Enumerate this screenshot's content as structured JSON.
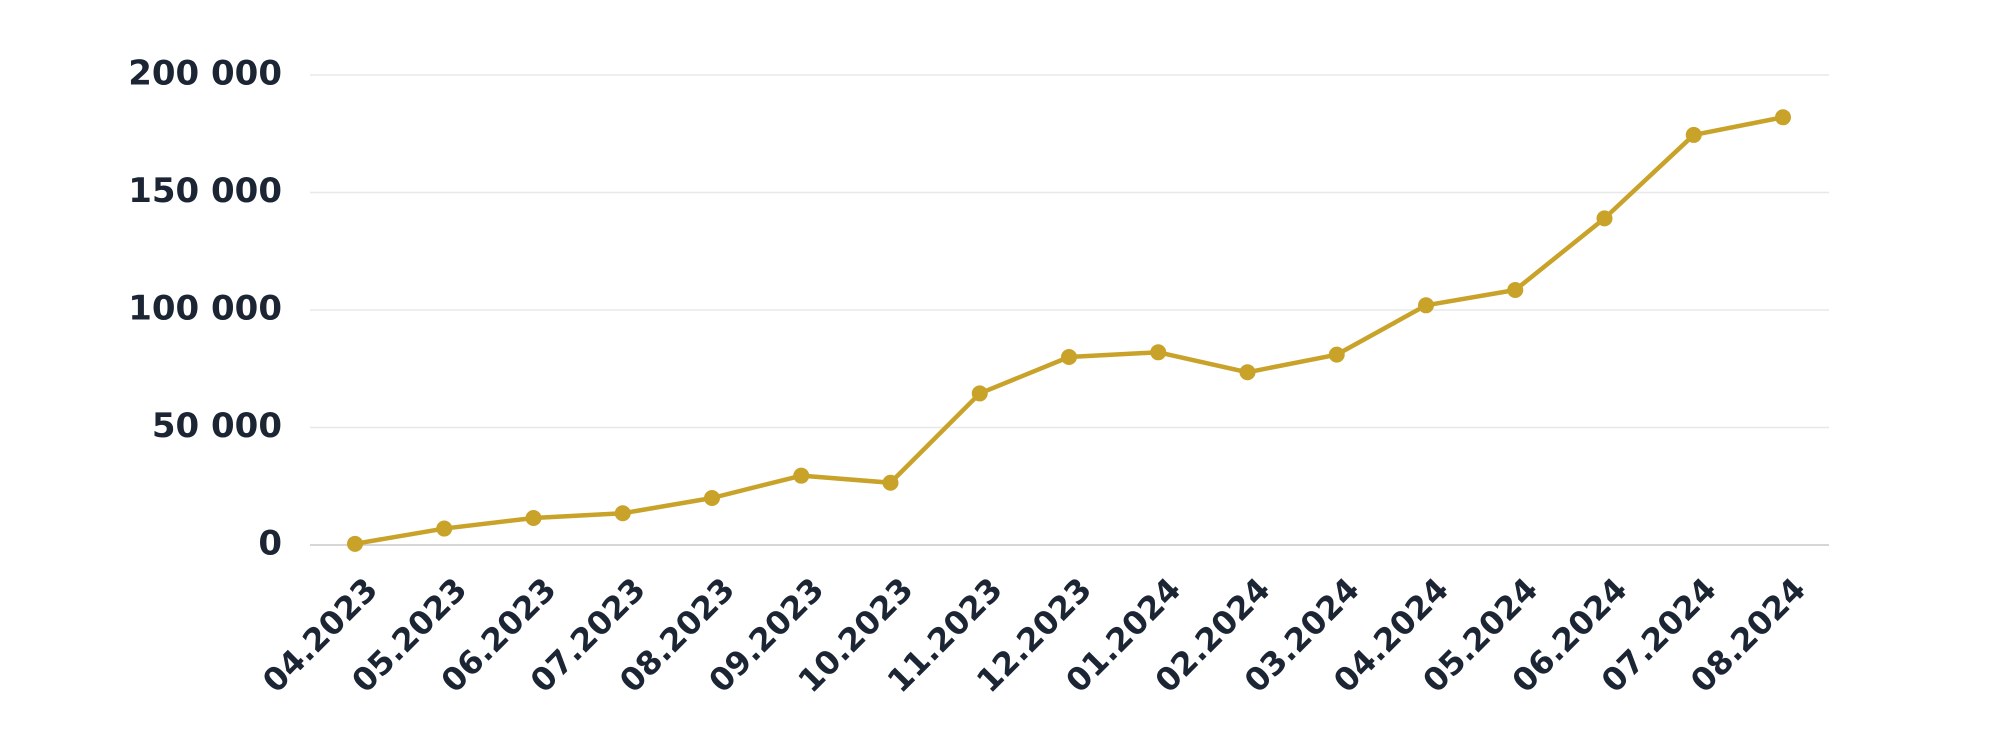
{
  "chart_data": {
    "type": "line",
    "categories": [
      "04.2023",
      "05.2023",
      "06.2023",
      "07.2023",
      "08.2023",
      "09.2023",
      "10.2023",
      "11.2023",
      "12.2023",
      "01.2024",
      "02.2024",
      "03.2024",
      "04.2024",
      "05.2024",
      "06.2024",
      "07.2024",
      "08.2024"
    ],
    "series": [
      {
        "color": "#c9a22a",
        "values": [
          500,
          7000,
          11500,
          13500,
          20000,
          29500,
          26500,
          64500,
          80000,
          82000,
          73500,
          81000,
          102000,
          108500,
          139000,
          174500,
          182000
        ]
      }
    ],
    "ylim": [
      0,
      200000
    ],
    "yticks": [
      0,
      {
        "value": 50000,
        "label": "50 000"
      },
      {
        "value": 100000,
        "label": "100 000"
      },
      {
        "value": 150000,
        "label": "150 000"
      },
      {
        "value": 200000,
        "label": "200 000"
      }
    ],
    "grid": true
  }
}
